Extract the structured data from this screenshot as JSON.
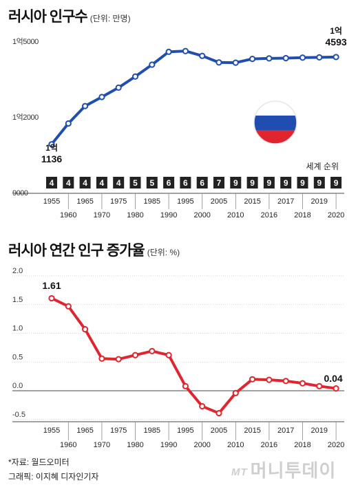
{
  "chart1": {
    "title": "러시아 인구수",
    "unit": "(단위: 만명)",
    "rank_label": "세계 순위",
    "flag_colors": [
      "#ffffff",
      "#1f4db0",
      "#e0252e"
    ],
    "first_label": [
      "1억",
      "1136"
    ],
    "last_label": [
      "1억",
      "4593"
    ],
    "line_color": "#1f4db0"
  },
  "chart2": {
    "title": "러시아 연간 인구 증가율",
    "unit": "(단위: %)",
    "first_label": "1.61",
    "last_label": "0.04",
    "line_color": "#e0252e"
  },
  "x_labels_top": [
    "1955",
    "1965",
    "1975",
    "1985",
    "1995",
    "2005",
    "2015",
    "2017",
    "2019"
  ],
  "x_labels_bottom": [
    "1960",
    "1970",
    "1980",
    "1990",
    "2000",
    "2010",
    "2016",
    "2018",
    "2020"
  ],
  "footer": {
    "source": "*자료: 월드오미터",
    "credit": "그래픽: 이지혜 디자인기자",
    "brand_mt": "MT",
    "brand_name": "머니투데이"
  },
  "chart_data": [
    {
      "type": "line",
      "title": "러시아 인구수",
      "ylabel": "(단위: 만명)",
      "y_ticks": [
        "1억5000",
        "1억2000",
        "9000"
      ],
      "y_tick_values": [
        15000,
        12000,
        9000
      ],
      "ylim": [
        9000,
        15800
      ],
      "x": [
        "1955",
        "1960",
        "1965",
        "1970",
        "1975",
        "1980",
        "1985",
        "1990",
        "1995",
        "2000",
        "2005",
        "2010",
        "2015",
        "2016",
        "2017",
        "2018",
        "2019",
        "2020"
      ],
      "series": [
        {
          "values": [
            11136,
            11960,
            12650,
            13010,
            13380,
            13820,
            14290,
            14800,
            14830,
            14640,
            14380,
            14370,
            14520,
            14540,
            14550,
            14570,
            14580,
            14593
          ]
        }
      ],
      "world_rank": [
        "4",
        "4",
        "4",
        "4",
        "4",
        "5",
        "5",
        "6",
        "6",
        "6",
        "7",
        "9",
        "9",
        "9",
        "9",
        "9",
        "9",
        "9"
      ],
      "grid": false
    },
    {
      "type": "line",
      "title": "러시아 연간 인구 증가율",
      "ylabel": "(단위: %)",
      "y_ticks": [
        "2.0",
        "1.5",
        "1.0",
        "0.5",
        "0.0",
        "-0.5"
      ],
      "y_tick_values": [
        2.0,
        1.5,
        1.0,
        0.5,
        0.0,
        -0.5
      ],
      "ylim": [
        -0.5,
        2.0
      ],
      "x": [
        "1955",
        "1960",
        "1965",
        "1970",
        "1975",
        "1980",
        "1985",
        "1990",
        "1995",
        "2000",
        "2005",
        "2010",
        "2015",
        "2016",
        "2017",
        "2018",
        "2019",
        "2020"
      ],
      "series": [
        {
          "values": [
            1.61,
            1.47,
            1.07,
            0.56,
            0.55,
            0.62,
            0.69,
            0.62,
            0.08,
            -0.27,
            -0.39,
            -0.04,
            0.2,
            0.19,
            0.17,
            0.13,
            0.08,
            0.04
          ]
        }
      ],
      "grid": true
    }
  ]
}
